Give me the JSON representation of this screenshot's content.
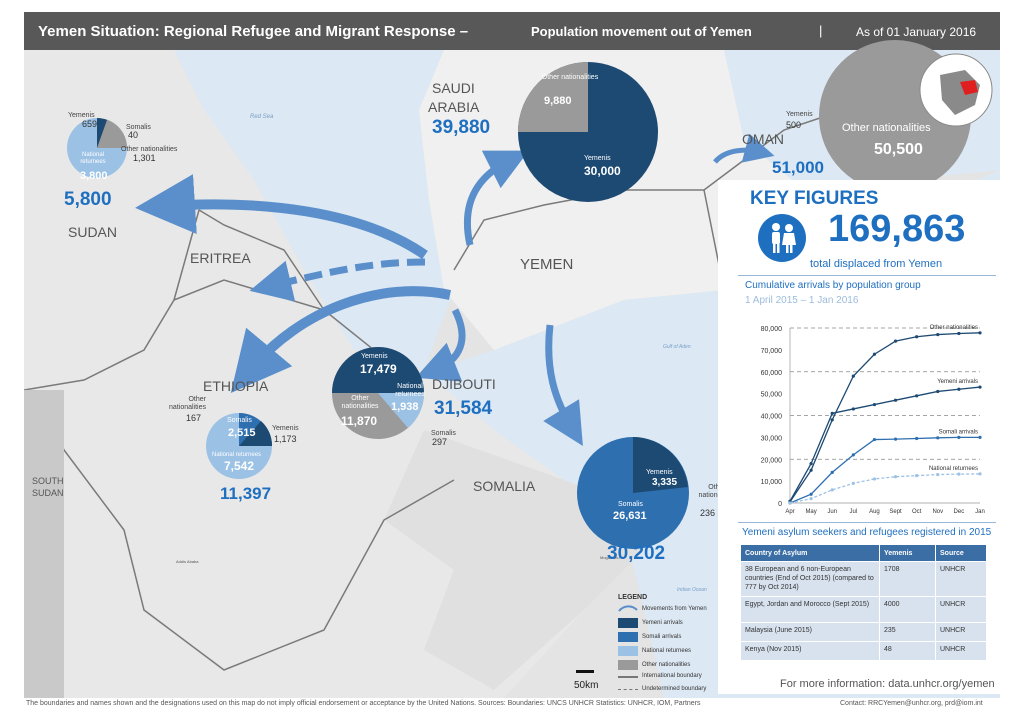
{
  "header": {
    "title": "Yemen Situation: Regional Refugee and Migrant Response –",
    "subtitle": "Population movement out of Yemen",
    "separator": "|",
    "date": "As of 01 January 2016"
  },
  "colors": {
    "yemeni": "#1d4a73",
    "somali": "#2e6fb0",
    "national_returnees": "#9bc1e4",
    "other_nationalities": "#9a9a9a",
    "accent": "#1f6fc0",
    "header_bg": "#585858"
  },
  "map_labels": {
    "red_sea": "Red Sea",
    "gulf_of_aden": "Gulf of Aden",
    "indian_ocean": "Indian Ocean",
    "yemen": "YEMEN",
    "eritrea": "ERITREA",
    "south_sudan": "SOUTH SUDAN",
    "addis": "Addis Ababa",
    "mogadishu": "Mogadishu"
  },
  "countries": {
    "sudan": {
      "name": "SUDAN",
      "total": "5,800",
      "yemenis_label": "Yemenis",
      "yemenis": "659",
      "somalis_label": "Somalis",
      "somalis": "40",
      "other_label": "Other nationalities",
      "other": "1,301",
      "returnees_label": "National returnees",
      "returnees": "3,800"
    },
    "saudi": {
      "name_line1": "SAUDI",
      "name_line2": "ARABIA",
      "total": "39,880",
      "other_label": "Other nationalities",
      "other": "9,880",
      "yemenis_label": "Yemenis",
      "yemenis": "30,000"
    },
    "oman": {
      "name": "OMAN",
      "total": "51,000",
      "yemenis_label": "Yemenis",
      "yemenis": "500",
      "other_label": "Other nationalities",
      "other": "50,500"
    },
    "ethiopia": {
      "name": "ETHIOPIA",
      "total": "11,397",
      "other_label": "Other nationalities",
      "other": "167",
      "somalis_label": "Somalis",
      "somalis": "2,515",
      "yemenis_label": "Yemenis",
      "yemenis": "1,173",
      "returnees_label": "National returnees",
      "returnees": "7,542"
    },
    "djibouti": {
      "name": "DJIBOUTI",
      "total": "31,584",
      "yemenis_label": "Yemenis",
      "yemenis": "17,479",
      "returnees_label": "National returnees",
      "returnees": "1,938",
      "other_label": "Other nationalities",
      "other": "11,870",
      "somalis_label": "Somalis",
      "somalis": "297"
    },
    "somalia": {
      "name": "SOMALIA",
      "total": "30,202",
      "yemenis_label": "Yemenis",
      "yemenis": "3,335",
      "somalis_label": "Somalis",
      "somalis": "26,631",
      "other_label": "Other nationalities",
      "other": "236"
    }
  },
  "key_figures": {
    "title": "KEY FIGURES",
    "total": "169,863",
    "total_label": "total displaced from Yemen",
    "chart_title": "Cumulative arrivals by population group",
    "chart_subtitle": "1 April 2015 – 1 Jan 2016"
  },
  "chart_data": {
    "type": "line",
    "title": "Cumulative arrivals by population group",
    "subtitle": "1 April 2015 – 1 Jan 2016",
    "categories": [
      "Apr",
      "May",
      "Jun",
      "Jul",
      "Aug",
      "Sept",
      "Oct",
      "Nov",
      "Dec",
      "Jan"
    ],
    "ylim": [
      0,
      80000
    ],
    "yticks": [
      "0",
      "10,000",
      "20,000",
      "30,000",
      "40,000",
      "50,000",
      "60,000",
      "70,000",
      "80,000"
    ],
    "series": [
      {
        "name": "Other nationalities",
        "values": [
          500,
          15000,
          38000,
          58000,
          68000,
          74000,
          76000,
          77000,
          77500,
          77800
        ]
      },
      {
        "name": "Yemeni arrivals",
        "values": [
          800,
          18000,
          41000,
          43000,
          45000,
          47000,
          49000,
          51000,
          52000,
          53000
        ]
      },
      {
        "name": "Somali arrivals",
        "values": [
          0,
          4000,
          14000,
          22000,
          29000,
          29200,
          29500,
          29800,
          30000,
          30000
        ]
      },
      {
        "name": "National returnees",
        "values": [
          0,
          2000,
          6000,
          9000,
          11000,
          12000,
          12500,
          13000,
          13200,
          13300
        ]
      }
    ]
  },
  "asylum_table": {
    "title": "Yemeni asylum seekers and refugees registered in 2015",
    "headers": [
      "Country of Asylum",
      "Yemenis",
      "Source"
    ],
    "rows": [
      [
        "38 European and 6 non-European countries (End of Oct 2015) (compared to 777 by Oct 2014)",
        "1708",
        "UNHCR"
      ],
      [
        "Egypt, Jordan and Morocco (Sept 2015)",
        "4000",
        "UNHCR"
      ],
      [
        "Malaysia (June 2015)",
        "235",
        "UNHCR"
      ],
      [
        "Kenya (Nov 2015)",
        "48",
        "UNHCR"
      ]
    ]
  },
  "more_info": "For more information: data.unhcr.org/yemen",
  "legend": {
    "title": "LEGEND",
    "items": [
      "Movements from Yemen",
      "Yemeni arrivals",
      "Somali arrivals",
      "National returnees",
      "Other nationalities",
      "International boundary",
      "Undetermined boundary"
    ]
  },
  "scale": "50km",
  "footer": {
    "disclaimer": "The boundaries and names shown and the designations used on this map do not imply official endorsement or acceptance by the United Nations.   Sources: Boundaries: UNCS UNHCR    Statistics: UNHCR, IOM, Partners",
    "contact": "Contact: RRCYemen@unhcr.org, prd@iom.int"
  }
}
